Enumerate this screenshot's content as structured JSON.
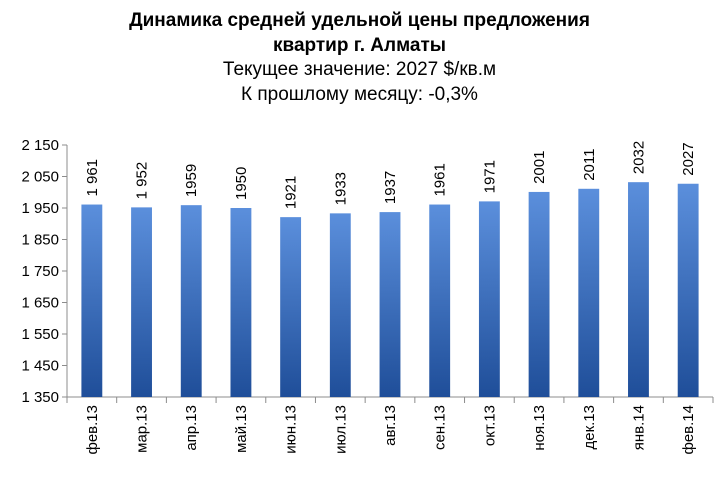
{
  "chart_data": {
    "type": "bar",
    "title_line1": "Динамика средней удельной цены предложения",
    "title_line2": "квартир г. Алматы",
    "subtitle_line1": "Текущее значение: 2027 $/кв.м",
    "subtitle_line2": "К прошлому месяцу: -0,3%",
    "categories": [
      "фев.13",
      "мар.13",
      "апр.13",
      "май.13",
      "июн.13",
      "июл.13",
      "авг.13",
      "сен.13",
      "окт.13",
      "ноя.13",
      "дек.13",
      "янв.14",
      "фев.14"
    ],
    "values": [
      1961,
      1952,
      1959,
      1950,
      1921,
      1933,
      1937,
      1961,
      1971,
      2001,
      2011,
      2032,
      2027
    ],
    "data_labels": [
      "1 961",
      "1 952",
      "1959",
      "1950",
      "1921",
      "1933",
      "1937",
      "1961",
      "1971",
      "2001",
      "2011",
      "2032",
      "2027"
    ],
    "ylim": [
      1350,
      2150
    ],
    "yticks": [
      1350,
      1450,
      1550,
      1650,
      1750,
      1850,
      1950,
      2050,
      2150
    ],
    "ytick_labels": [
      "1 350",
      "1 450",
      "1 550",
      "1 650",
      "1 750",
      "1 850",
      "1 950",
      "2 050",
      "2 150"
    ],
    "xlabel": "",
    "ylabel": "",
    "grid": false,
    "bar_color_light": "#5b8fdc",
    "bar_color_dark": "#1f4e99",
    "axis_color": "#8c8c8c"
  }
}
